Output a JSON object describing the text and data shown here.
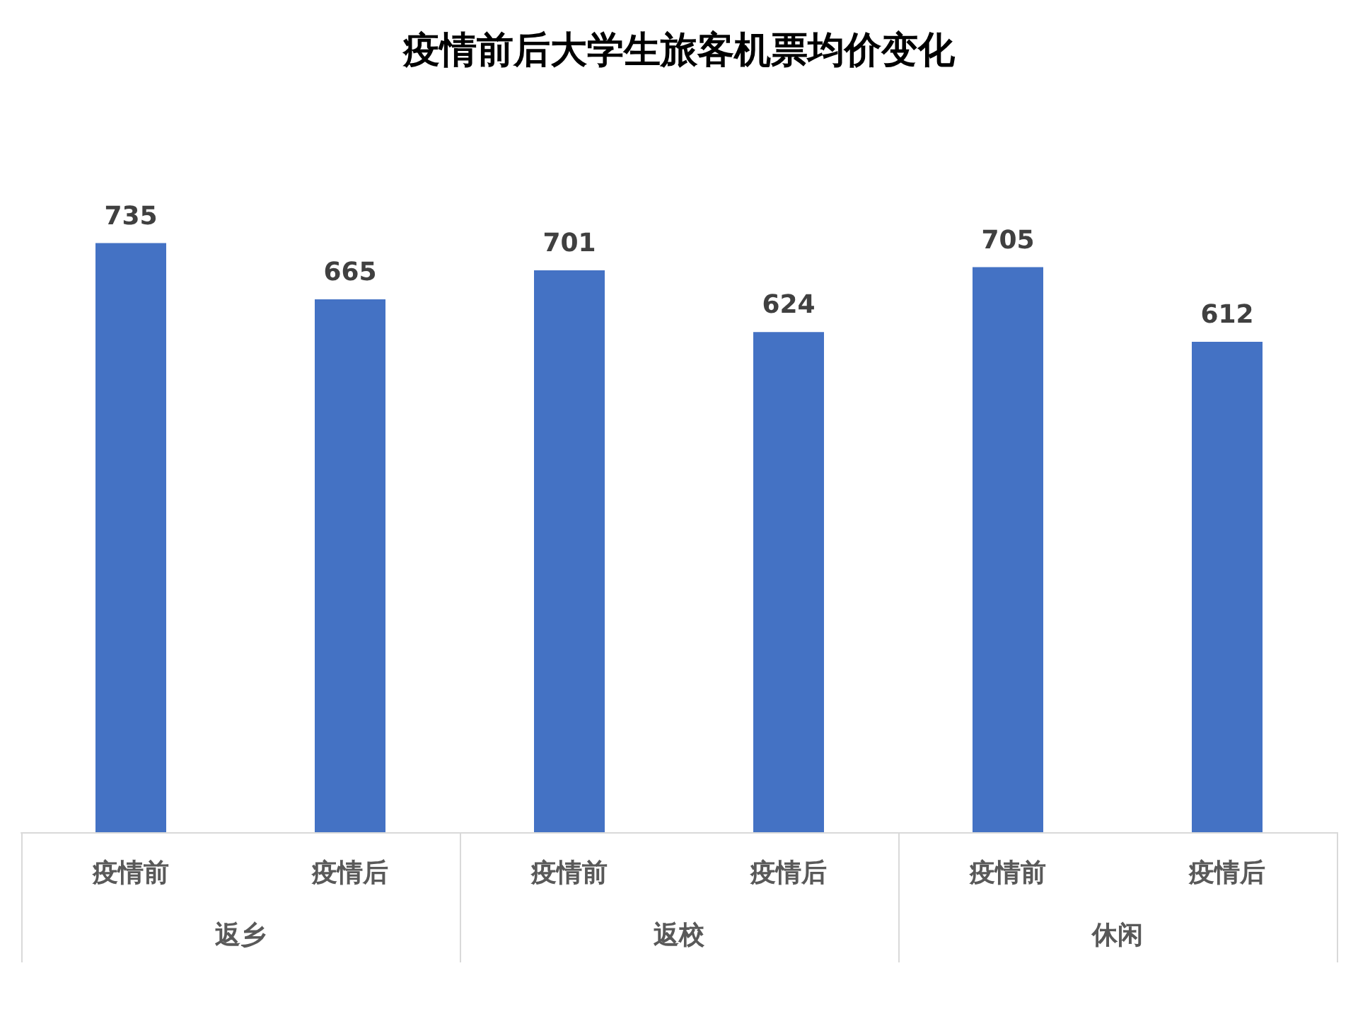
{
  "chart_data": {
    "type": "bar",
    "title": "疫情前后大学生旅客机票均价变化",
    "categories": [
      "返乡",
      "返校",
      "休闲"
    ],
    "series": [
      {
        "name": "疫情前",
        "color": "#4472c4",
        "values": [
          735,
          701,
          705
        ]
      },
      {
        "name": "疫情后",
        "color": "#4472c4",
        "values": [
          665,
          624,
          612
        ]
      }
    ],
    "data_labels": true
  }
}
